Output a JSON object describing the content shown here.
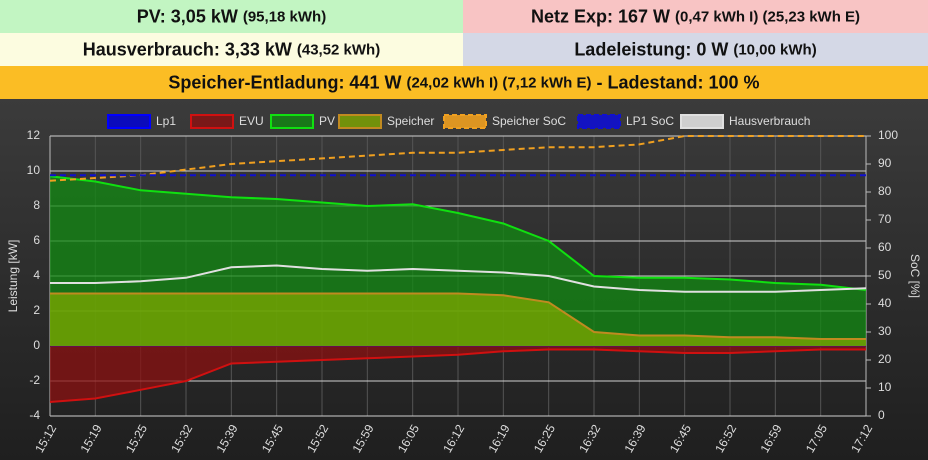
{
  "status": [
    {
      "parts": [
        "PV: 3,05 kW",
        "(95,18 kWh)"
      ],
      "color": "#c2f5c2"
    },
    {
      "parts": [
        "Netz Exp: 167 W",
        "(0,47 kWh I) (25,23 kWh E)"
      ],
      "color": "#f8c4c4"
    },
    {
      "parts": [
        "Hausverbrauch: 3,33 kW",
        "(43,52 kWh)"
      ],
      "color": "#fcfce0"
    },
    {
      "parts": [
        "Ladeleistung: 0 W",
        "(10,00 kWh)"
      ],
      "color": "#d4d8e6"
    },
    {
      "parts": [
        "Speicher-Entladung: 441 W",
        "(24,02 kWh I) (7,12 kWh E)",
        "- Ladestand: 100 %"
      ],
      "color": "#fbbd24"
    }
  ],
  "chart_data": {
    "type": "line",
    "categories": [
      "15:12",
      "15:19",
      "15:25",
      "15:32",
      "15:39",
      "15:45",
      "15:52",
      "15:59",
      "16:05",
      "16:12",
      "16:19",
      "16:25",
      "16:32",
      "16:39",
      "16:45",
      "16:52",
      "16:59",
      "17:05",
      "17:12"
    ],
    "ylabel": "Leistung [kW]",
    "y2label": "SoC [%]",
    "ylim": [
      -4,
      12
    ],
    "yticks": [
      -4,
      -2,
      0,
      2,
      4,
      6,
      8,
      10,
      12
    ],
    "y2lim": [
      0,
      100
    ],
    "y2ticks": [
      0,
      10,
      20,
      30,
      40,
      50,
      60,
      70,
      80,
      90,
      100
    ],
    "grid": true,
    "series": [
      {
        "name": "Lp1",
        "color": "#0000ff",
        "fill": "#0000dd",
        "values": [
          0,
          0,
          0,
          0,
          0,
          0,
          0,
          0,
          0,
          0,
          0,
          0,
          0,
          0,
          0,
          0,
          0,
          0,
          0
        ]
      },
      {
        "name": "EVU",
        "color": "#d01010",
        "fill": "#8b1010",
        "values": [
          -3.2,
          -3.0,
          -2.5,
          -2.0,
          -1.0,
          -0.9,
          -0.8,
          -0.7,
          -0.6,
          -0.5,
          -0.3,
          -0.2,
          -0.2,
          -0.3,
          -0.4,
          -0.4,
          -0.3,
          -0.2,
          -0.2
        ]
      },
      {
        "name": "PV",
        "color": "#10e010",
        "fill": "#118a11",
        "values": [
          9.7,
          9.4,
          8.9,
          8.7,
          8.5,
          8.4,
          8.2,
          8.0,
          8.1,
          7.6,
          7.0,
          6.0,
          4.0,
          3.9,
          3.9,
          3.8,
          3.6,
          3.5,
          3.2
        ]
      },
      {
        "name": "Speicher",
        "color": "#c08a20",
        "fill": "#7fa800",
        "values": [
          3.0,
          3.0,
          3.0,
          3.0,
          3.0,
          3.0,
          3.0,
          3.0,
          3.0,
          3.0,
          2.9,
          2.5,
          0.8,
          0.6,
          0.6,
          0.5,
          0.5,
          0.4,
          0.4
        ]
      },
      {
        "name": "Speicher SoC",
        "color": "#f0a020",
        "dash": true,
        "axis": "y2",
        "values": [
          84,
          85,
          86,
          88,
          90,
          91,
          92,
          93,
          94,
          94,
          95,
          96,
          96,
          97,
          100,
          100,
          100,
          100,
          100
        ]
      },
      {
        "name": "LP1 SoC",
        "color": "#1010d0",
        "dash": true,
        "axis": "y2",
        "values": [
          86,
          86,
          86,
          86,
          86,
          86,
          86,
          86,
          86,
          86,
          86,
          86,
          86,
          86,
          86,
          86,
          86,
          86,
          86
        ]
      },
      {
        "name": "Hausverbrauch",
        "color": "#e0e0e0",
        "values": [
          3.6,
          3.6,
          3.7,
          3.9,
          4.5,
          4.6,
          4.4,
          4.3,
          4.4,
          4.3,
          4.2,
          4.0,
          3.4,
          3.2,
          3.1,
          3.1,
          3.1,
          3.2,
          3.3
        ]
      }
    ]
  }
}
